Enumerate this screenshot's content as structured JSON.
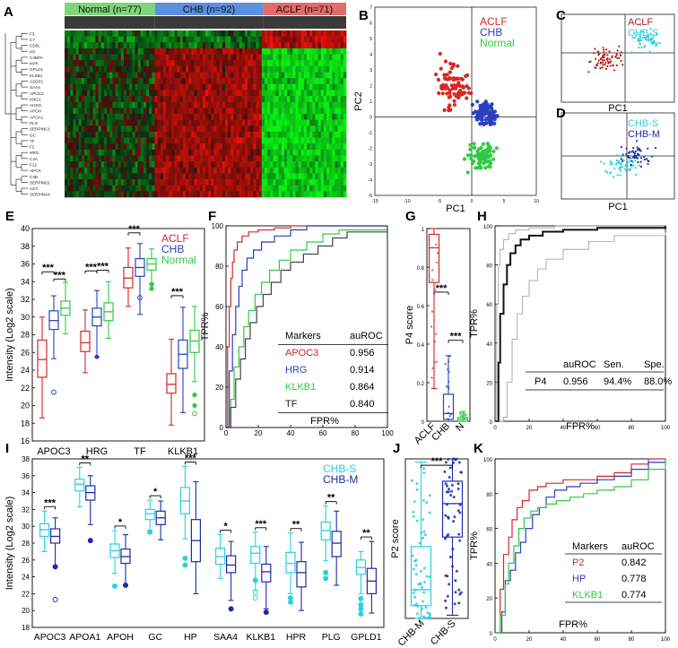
{
  "colors": {
    "aclf": "#d62728",
    "chb": "#2b3fbf",
    "normal": "#2ecc40",
    "chb_s": "#2ad0e0",
    "chb_m": "#1f2aa8",
    "gray": "#888888"
  },
  "panels": {
    "A": "A",
    "B": "B",
    "C": "C",
    "D": "D",
    "E": "E",
    "F": "F",
    "G": "G",
    "H": "H",
    "I": "I",
    "J": "J",
    "K": "K"
  },
  "chart_data": [
    {
      "id": "A",
      "type": "heatmap",
      "groups": [
        {
          "label": "Normal (n=77)",
          "n": 77
        },
        {
          "label": "CHB (n=92)",
          "n": 92
        },
        {
          "label": "ACLF (n=71)",
          "n": 71
        }
      ],
      "genes": [
        "F3",
        "C7",
        "CD5L",
        "HP",
        "C4BPA",
        "HPR",
        "GPLD1",
        "KLKB1",
        "AZGP1",
        "SAA4",
        "APOC3",
        "KNG1",
        "AHSG",
        "APOH",
        "APOA1",
        "PLG",
        "SERPINC1",
        "GC",
        "TF",
        "F2",
        "HRG",
        "C4A",
        "F12",
        "APCS",
        "C4B",
        "SERPIND1",
        "AGT",
        "SERPINA4"
      ]
    },
    {
      "id": "B",
      "type": "scatter",
      "xlabel": "PC1",
      "ylabel": "PC2",
      "xlim": [
        -15,
        10
      ],
      "ylim": [
        -5,
        7
      ],
      "xticks": [
        "-15",
        "-10",
        "-5",
        "0",
        "5",
        "10"
      ],
      "yticks": [
        "-5",
        "-4",
        "-3",
        "-2",
        "-1",
        "0",
        "1",
        "2",
        "3",
        "4",
        "5",
        "6",
        "7"
      ],
      "legend": [
        "ACLF",
        "CHB",
        "Normal"
      ]
    },
    {
      "id": "C",
      "type": "scatter",
      "xlabel": "PC1",
      "legend": [
        "ACLF",
        "CHB-S"
      ]
    },
    {
      "id": "D",
      "type": "scatter",
      "xlabel": "PC1",
      "legend": [
        "CHB-S",
        "CHB-M"
      ]
    },
    {
      "id": "E",
      "type": "box",
      "ylabel": "Intensity (Log2 scale)",
      "ylim": [
        16,
        40
      ],
      "yticks": [
        "16",
        "18",
        "20",
        "22",
        "24",
        "26",
        "28",
        "30",
        "32",
        "34",
        "36",
        "38",
        "40"
      ],
      "categories": [
        "APOC3",
        "HRG",
        "TF",
        "KLKB1"
      ],
      "legend": [
        "ACLF",
        "CHB",
        "Normal"
      ],
      "series": [
        {
          "name": "ACLF",
          "boxes": [
            [
              18.6,
              23.2,
              25.2,
              27.4,
              30
            ],
            [
              23.7,
              26.1,
              27.1,
              28.4,
              30.8
            ],
            [
              31.2,
              33.3,
              34.4,
              35.6,
              37.8
            ],
            [
              17.8,
              21.4,
              22.4,
              23.6,
              27.5
            ]
          ]
        },
        {
          "name": "CHB",
          "boxes": [
            [
              25.3,
              28.6,
              29.6,
              30.7,
              32.4
            ],
            [
              25.5,
              29.0,
              30.0,
              31.0,
              33.0
            ],
            [
              30.3,
              34.6,
              35.6,
              36.6,
              38.3
            ],
            [
              19.2,
              24.2,
              25.8,
              27.4,
              31.1
            ]
          ]
        },
        {
          "name": "Normal",
          "boxes": [
            [
              28.1,
              30.2,
              31.0,
              31.8,
              33.9
            ],
            [
              27.6,
              29.6,
              30.6,
              31.6,
              34.0
            ],
            [
              33.8,
              35.3,
              36.0,
              36.6,
              37.7
            ],
            [
              22.7,
              26.0,
              27.3,
              28.5,
              31.2
            ]
          ]
        }
      ],
      "sig": [
        "***",
        "***",
        "***",
        "***",
        "***",
        "***"
      ]
    },
    {
      "id": "F",
      "type": "line",
      "xlabel": "FPR%",
      "ylabel": "TPR%",
      "xlim": [
        0,
        100
      ],
      "ylim": [
        0,
        100
      ],
      "xticks": [
        "0",
        "20",
        "40",
        "60",
        "80",
        "100"
      ],
      "yticks": [
        "0",
        "20",
        "40",
        "60",
        "80",
        "100"
      ],
      "table": {
        "header": [
          "Markers",
          "auROC"
        ],
        "rows": [
          [
            "APOC3",
            "0.956"
          ],
          [
            "HRG",
            "0.914"
          ],
          [
            "KLKB1",
            "0.864"
          ],
          [
            "TF",
            "0.840"
          ]
        ]
      },
      "series": [
        {
          "name": "APOC3",
          "x": [
            0,
            1,
            2,
            3,
            4,
            5,
            7,
            10,
            14,
            20,
            30,
            40,
            55,
            100
          ],
          "y": [
            0,
            40,
            60,
            74,
            82,
            88,
            92,
            95,
            97,
            98,
            99,
            100,
            100,
            100
          ]
        },
        {
          "name": "HRG",
          "x": [
            0,
            2,
            4,
            6,
            8,
            10,
            13,
            17,
            22,
            30,
            40,
            50,
            100
          ],
          "y": [
            0,
            28,
            46,
            60,
            70,
            78,
            84,
            88,
            92,
            95,
            98,
            100,
            100
          ]
        },
        {
          "name": "KLKB1",
          "x": [
            0,
            3,
            5,
            8,
            11,
            14,
            18,
            22,
            27,
            33,
            40,
            50,
            60,
            70,
            100
          ],
          "y": [
            0,
            14,
            30,
            40,
            50,
            58,
            66,
            72,
            78,
            83,
            88,
            92,
            96,
            98,
            100
          ]
        },
        {
          "name": "TF",
          "x": [
            0,
            3,
            6,
            9,
            12,
            15,
            19,
            23,
            28,
            34,
            40,
            48,
            57,
            66,
            75,
            100
          ],
          "y": [
            0,
            10,
            24,
            34,
            44,
            52,
            60,
            66,
            72,
            78,
            82,
            86,
            90,
            94,
            97,
            100
          ]
        }
      ]
    },
    {
      "id": "G",
      "type": "box",
      "ylabel": "P4 score",
      "ylim": [
        0,
        1
      ],
      "yticks": [
        "0",
        "0.2",
        "0.4",
        "0.6",
        "0.8",
        "1"
      ],
      "categories": [
        "ACLF",
        "CHB",
        "N"
      ],
      "boxes": [
        [
          0.17,
          0.72,
          0.9,
          0.97,
          1.0
        ],
        [
          0,
          0.01,
          0.04,
          0.14,
          0.34
        ],
        [
          0,
          0,
          0.01,
          0.02,
          0.05
        ]
      ],
      "sig": [
        "***",
        "***"
      ]
    },
    {
      "id": "H",
      "type": "line",
      "xlabel": "FPR%",
      "ylabel": "TPR%",
      "xlim": [
        0,
        100
      ],
      "ylim": [
        0,
        100
      ],
      "xticks": [
        "0",
        "20",
        "40",
        "60",
        "80",
        "100"
      ],
      "yticks": [
        "0",
        "20",
        "40",
        "60",
        "80",
        "100"
      ],
      "table": {
        "header": [
          "auROC",
          "Sen.",
          "Spe."
        ],
        "rows": [
          [
            "P4",
            "0.956",
            "94.4%",
            "88.0%"
          ]
        ]
      },
      "series": [
        {
          "name": "upper",
          "x": [
            0,
            1,
            2,
            3,
            5,
            8,
            12,
            20,
            35,
            60,
            100
          ],
          "y": [
            0,
            60,
            80,
            88,
            93,
            96,
            98,
            99,
            100,
            100,
            100
          ]
        },
        {
          "name": "P4",
          "x": [
            0,
            2,
            3,
            5,
            7,
            9,
            12,
            15,
            20,
            28,
            40,
            60,
            100
          ],
          "y": [
            0,
            30,
            55,
            70,
            80,
            86,
            90,
            93,
            95,
            97,
            98,
            99,
            100
          ]
        },
        {
          "name": "lower",
          "x": [
            0,
            5,
            7,
            10,
            13,
            16,
            20,
            25,
            30,
            40,
            55,
            70,
            100
          ],
          "y": [
            0,
            2,
            20,
            42,
            55,
            64,
            72,
            78,
            83,
            88,
            92,
            95,
            97
          ]
        }
      ]
    },
    {
      "id": "I",
      "type": "box",
      "ylabel": "Intensity (Log2 scale)",
      "ylim": [
        18,
        38
      ],
      "yticks": [
        "18",
        "20",
        "22",
        "24",
        "26",
        "28",
        "30",
        "32",
        "34",
        "36",
        "38"
      ],
      "categories": [
        "APOC3",
        "APOA1",
        "APOH",
        "GC",
        "HP",
        "SAA4",
        "KLKB1",
        "HPR",
        "PLG",
        "GPLD1"
      ],
      "legend": [
        "CHB-S",
        "CHB-M"
      ],
      "series": [
        {
          "name": "CHB-S",
          "boxes": [
            [
              27.0,
              28.8,
              29.6,
              30.3,
              31.8
            ],
            [
              32.3,
              34.2,
              35.0,
              35.6,
              37.0
            ],
            [
              24.4,
              26.3,
              27.1,
              27.9,
              29.5
            ],
            [
              29.5,
              30.8,
              31.5,
              32.0,
              33.1
            ],
            [
              28.5,
              31.5,
              33.0,
              34.6,
              37.1
            ],
            [
              23.8,
              25.5,
              26.4,
              27.4,
              29.0
            ],
            [
              22.4,
              25.6,
              26.8,
              27.6,
              29.3
            ],
            [
              22.0,
              24.5,
              25.6,
              26.9,
              29.2
            ],
            [
              25.9,
              28.4,
              29.5,
              30.5,
              32.4
            ],
            [
              22.0,
              24.3,
              25.1,
              26.0,
              27.0
            ]
          ]
        },
        {
          "name": "CHB-M",
          "boxes": [
            [
              25.2,
              28.0,
              28.8,
              29.7,
              31.0
            ],
            [
              30.2,
              33.1,
              34.0,
              34.8,
              36.0
            ],
            [
              23.0,
              25.6,
              26.4,
              27.3,
              29.0
            ],
            [
              28.4,
              30.2,
              31.0,
              31.8,
              33.0
            ],
            [
              22.0,
              25.8,
              28.3,
              30.8,
              35.3
            ],
            [
              21.2,
              24.5,
              25.4,
              26.5,
              28.2
            ],
            [
              20.2,
              23.4,
              24.6,
              25.5,
              27.6
            ],
            [
              20.0,
              22.8,
              24.5,
              25.8,
              28.1
            ],
            [
              23.0,
              26.4,
              28.0,
              29.4,
              31.8
            ],
            [
              19.7,
              22.0,
              23.5,
              25.0,
              28.2
            ]
          ]
        }
      ],
      "sig": [
        "***",
        "**",
        "*",
        "*",
        "***",
        "*",
        "***",
        "**",
        "**",
        "**"
      ]
    },
    {
      "id": "J",
      "type": "box",
      "ylabel": "P2 score",
      "ylim": [
        0,
        1
      ],
      "categories": [
        "CHB-M",
        "CHB-S"
      ],
      "boxes": [
        [
          0,
          0.08,
          0.18,
          0.45,
          0.98
        ],
        [
          0.02,
          0.51,
          0.72,
          0.86,
          1.0
        ]
      ],
      "sig": [
        "***"
      ]
    },
    {
      "id": "K",
      "type": "line",
      "xlabel": "FPR%",
      "ylabel": "TPR%",
      "xlim": [
        0,
        100
      ],
      "ylim": [
        0,
        100
      ],
      "xticks": [
        "0",
        "20",
        "40",
        "60",
        "80",
        "100"
      ],
      "yticks": [
        "0",
        "20",
        "40",
        "60",
        "80",
        "100"
      ],
      "table": {
        "header": [
          "Markers",
          "auROC"
        ],
        "rows": [
          [
            "P2",
            "0.842"
          ],
          [
            "HP",
            "0.778"
          ],
          [
            "KLKB1",
            "0.774"
          ]
        ]
      },
      "series": [
        {
          "name": "P2",
          "x": [
            0,
            3,
            5,
            8,
            10,
            13,
            16,
            20,
            25,
            30,
            40,
            50,
            60,
            70,
            80,
            90,
            100
          ],
          "y": [
            0,
            25,
            45,
            55,
            65,
            72,
            76,
            82,
            84,
            86,
            88,
            88,
            90,
            92,
            97,
            100,
            100
          ]
        },
        {
          "name": "HP",
          "x": [
            0,
            4,
            6,
            9,
            12,
            15,
            18,
            22,
            26,
            30,
            35,
            42,
            50,
            60,
            70,
            80,
            90,
            100
          ],
          "y": [
            0,
            12,
            30,
            36,
            46,
            52,
            60,
            68,
            72,
            78,
            82,
            84,
            86,
            88,
            90,
            94,
            98,
            100
          ]
        },
        {
          "name": "KLKB1",
          "x": [
            0,
            3,
            6,
            8,
            11,
            14,
            17,
            21,
            25,
            30,
            36,
            44,
            52,
            60,
            70,
            80,
            90,
            100
          ],
          "y": [
            0,
            10,
            28,
            40,
            50,
            60,
            66,
            70,
            72,
            74,
            76,
            78,
            80,
            82,
            84,
            88,
            94,
            100
          ]
        }
      ]
    }
  ]
}
